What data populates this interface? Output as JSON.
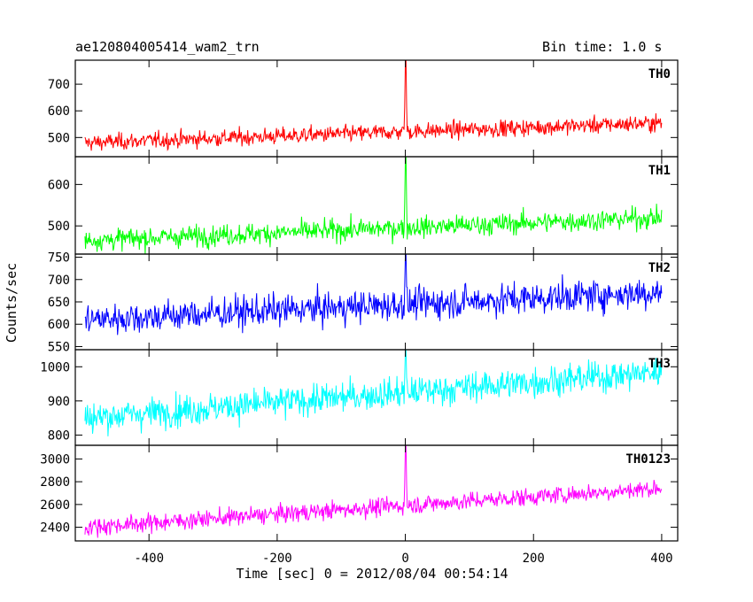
{
  "header": {
    "title": "ae120804005414_wam2_trn",
    "bin_time": "Bin time: 1.0 s"
  },
  "chart_data": {
    "type": "line",
    "xlabel": "Time [sec] 0 = 2012/08/04 00:54:14",
    "ylabel": "Counts/sec",
    "xlim": [
      -515,
      425
    ],
    "xticks": [
      -400,
      -200,
      0,
      200,
      400
    ],
    "x_start": -500,
    "x_end": 400,
    "bin_size": 1.0,
    "panels": [
      {
        "name": "TH0",
        "color": "#ff0000",
        "ylim": [
          428,
          790
        ],
        "yticks": [
          500,
          600,
          700
        ],
        "baseline_start": 480,
        "baseline_end": 555,
        "noise": 22,
        "spike_peak": 790
      },
      {
        "name": "TH1",
        "color": "#00ff00",
        "ylim": [
          432,
          667
        ],
        "yticks": [
          500,
          600
        ],
        "baseline_start": 465,
        "baseline_end": 520,
        "noise": 18,
        "spike_peak": 667
      },
      {
        "name": "TH2",
        "color": "#0000ff",
        "ylim": [
          543,
          757
        ],
        "yticks": [
          550,
          600,
          650,
          700,
          750
        ],
        "baseline_start": 610,
        "baseline_end": 672,
        "noise": 25,
        "spike_peak": 757
      },
      {
        "name": "TH3",
        "color": "#00ffff",
        "ylim": [
          770,
          1050
        ],
        "yticks": [
          800,
          900,
          1000
        ],
        "baseline_start": 850,
        "baseline_end": 985,
        "noise": 32,
        "spike_peak": 1050
      },
      {
        "name": "TH0123",
        "color": "#ff00ff",
        "ylim": [
          2280,
          3120
        ],
        "yticks": [
          2400,
          2600,
          2800,
          3000
        ],
        "baseline_start": 2400,
        "baseline_end": 2745,
        "noise": 55,
        "spike_peak": 3120
      }
    ]
  }
}
